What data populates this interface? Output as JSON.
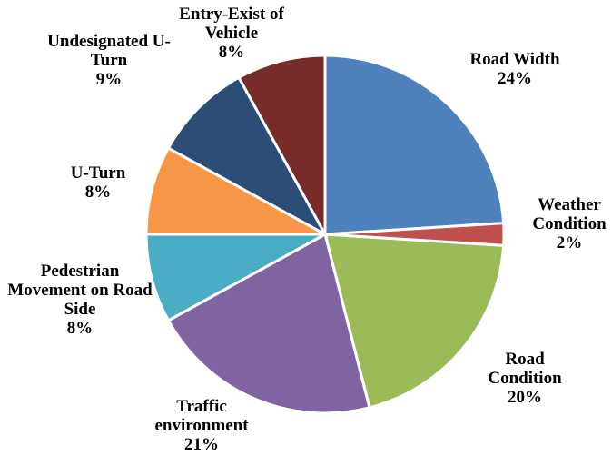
{
  "chart_data": {
    "type": "pie",
    "categories": [
      "Road Width",
      "Weather Condition",
      "Road Condition",
      "Traffic environment",
      "Pedestrian Movement on Road Side",
      "U-Turn",
      "Undesignated U-Turn",
      "Entry-Exist of Vehicle"
    ],
    "values": [
      24,
      2,
      20,
      21,
      8,
      8,
      9,
      8
    ],
    "value_labels": [
      "24%",
      "2%",
      "20%",
      "21%",
      "8%",
      "8%",
      "9%",
      "8%"
    ],
    "colors": [
      "#4f81bd",
      "#c0504d",
      "#9bbb59",
      "#8064a2",
      "#4bacc6",
      "#f79646",
      "#2c4d75",
      "#772c2a"
    ]
  }
}
